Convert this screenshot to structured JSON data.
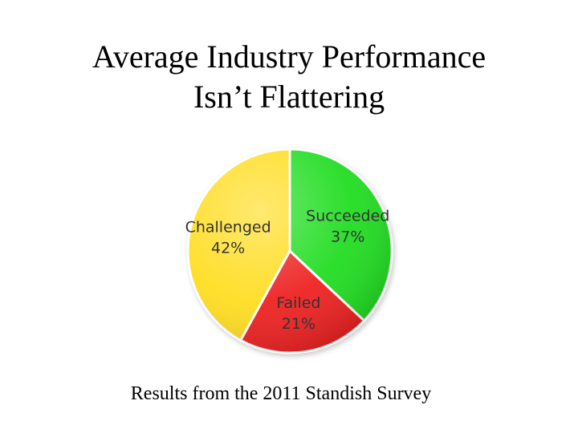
{
  "slide": {
    "title_line1": "Average Industry Performance",
    "title_line2": "Isn’t Flattering",
    "caption": "Results from the 2011 Standish Survey"
  },
  "colors": {
    "succeeded": "#22dd22",
    "failed": "#ee2222",
    "challenged": "#ffdd22"
  },
  "chart_data": {
    "type": "pie",
    "title": "",
    "slices": [
      {
        "name": "Succeeded",
        "value": 37,
        "display": "37%",
        "color": "#22dd22"
      },
      {
        "name": "Failed",
        "value": 21,
        "display": "21%",
        "color": "#ee2222"
      },
      {
        "name": "Challenged",
        "value": 42,
        "display": "42%",
        "color": "#ffdd22"
      }
    ],
    "start": "12 o'clock",
    "direction": "clockwise"
  }
}
